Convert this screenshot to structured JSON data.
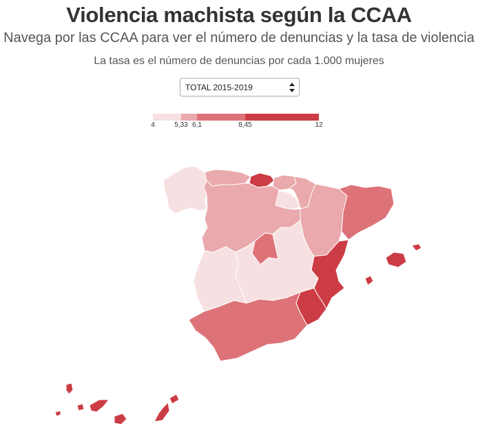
{
  "header": {
    "title": "Violencia machista según la CCAA",
    "subtitle": "Navega por las CCAA para ver el número de denuncias y la tasa de violencia",
    "note": "La tasa es el número de denuncias por cada 1.000 mujeres"
  },
  "period_select": {
    "selected": "TOTAL 2015-2019"
  },
  "legend": {
    "breaks": [
      "4",
      "5,33",
      "6,1",
      "8,45",
      "12"
    ],
    "colors": [
      "#f7e0e1",
      "#eaa9ac",
      "#dd7378",
      "#cc3c44"
    ]
  },
  "map": {
    "regions": [
      {
        "name": "Galicia",
        "class": 0
      },
      {
        "name": "Asturias",
        "class": 1
      },
      {
        "name": "Cantabria",
        "class": 3
      },
      {
        "name": "País Vasco",
        "class": 1
      },
      {
        "name": "Navarra",
        "class": 1
      },
      {
        "name": "La Rioja",
        "class": 0
      },
      {
        "name": "Aragón",
        "class": 1
      },
      {
        "name": "Cataluña",
        "class": 2
      },
      {
        "name": "Castilla y León",
        "class": 1
      },
      {
        "name": "Madrid",
        "class": 2
      },
      {
        "name": "Castilla-La Mancha",
        "class": 0
      },
      {
        "name": "Extremadura",
        "class": 0
      },
      {
        "name": "Comunidad Valenciana",
        "class": 3
      },
      {
        "name": "Región de Murcia",
        "class": 3
      },
      {
        "name": "Andalucía",
        "class": 2
      },
      {
        "name": "Illes Balears",
        "class": 3
      },
      {
        "name": "Canarias",
        "class": 3
      }
    ]
  }
}
